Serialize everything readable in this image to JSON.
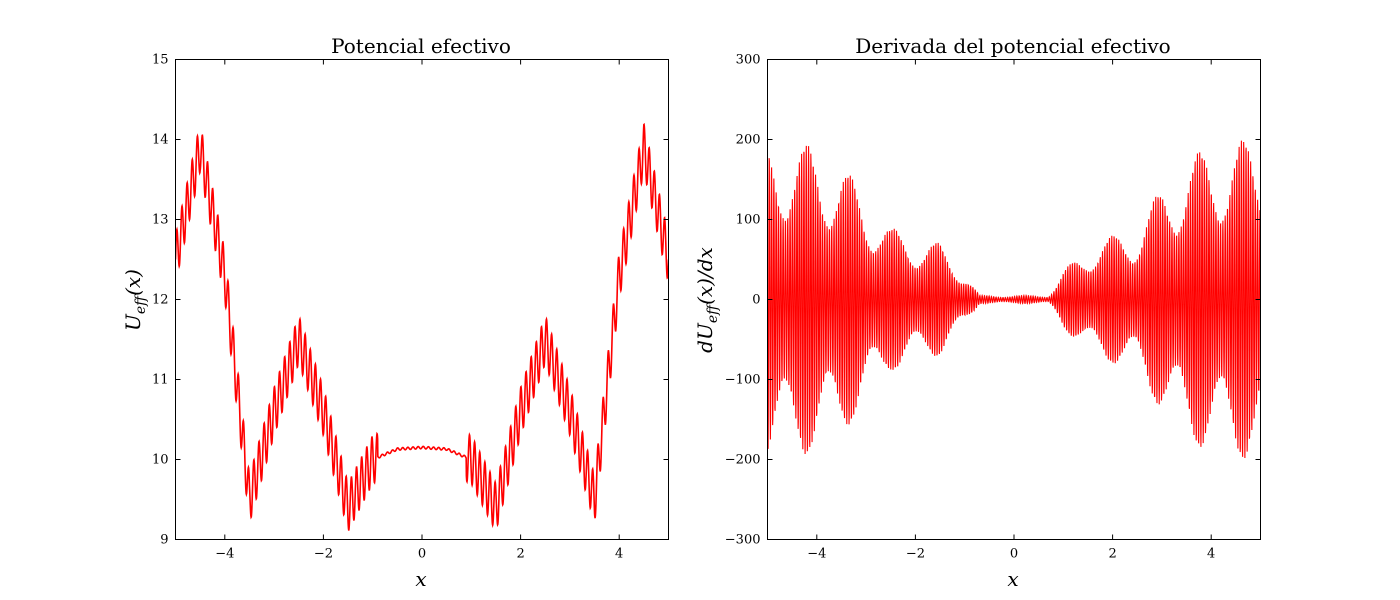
{
  "chart_data": [
    {
      "type": "line",
      "title": "Potencial efectivo",
      "xlabel": "x",
      "ylabel": "U_eff(x)",
      "xlim": [
        -5,
        5
      ],
      "ylim": [
        9,
        15
      ],
      "xticks": [
        -4,
        -2,
        0,
        2,
        4
      ],
      "xtick_labels": [
        "−4",
        "−2",
        "0",
        "2",
        "4"
      ],
      "yticks": [
        9,
        10,
        11,
        12,
        13,
        14,
        15
      ],
      "ytick_labels": [
        "9",
        "10",
        "11",
        "12",
        "13",
        "14",
        "15"
      ],
      "grid": false,
      "series": [
        {
          "color": "#ff0000",
          "x": [
            -5,
            -4.5,
            -4.0,
            -3.5,
            -3.0,
            -2.5,
            -2.0,
            -1.5,
            -1.0,
            -0.5,
            0,
            0.5,
            1.0,
            1.5,
            2.0,
            2.5,
            3.0,
            3.5,
            4.0,
            4.5,
            5
          ],
          "values": [
            12.5,
            13.9,
            12.3,
            9.5,
            10.6,
            11.5,
            10.6,
            9.4,
            10.0,
            10.13,
            10.15,
            10.13,
            10.0,
            9.4,
            10.6,
            11.5,
            10.6,
            9.5,
            12.3,
            13.9,
            12.5
          ],
          "oscillation_amplitude": 0.3
        }
      ]
    },
    {
      "type": "line",
      "title": "Derivada del potencial efectivo",
      "xlabel": "x",
      "ylabel": "dU_eff(x)/dx",
      "xlim": [
        -5,
        5
      ],
      "ylim": [
        -300,
        300
      ],
      "xticks": [
        -4,
        -2,
        0,
        2,
        4
      ],
      "xtick_labels": [
        "−4",
        "−2",
        "0",
        "2",
        "4"
      ],
      "yticks": [
        -300,
        -200,
        -100,
        0,
        100,
        200,
        300
      ],
      "ytick_labels": [
        "−300",
        "−200",
        "−100",
        "0",
        "100",
        "200",
        "300"
      ],
      "grid": false,
      "series": [
        {
          "color": "#ff0000",
          "x": [
            -5,
            -4.5,
            -4.0,
            -3.5,
            -3.0,
            -2.5,
            -2.0,
            -1.5,
            -1.0,
            -0.7,
            0,
            0.7,
            1.0,
            1.5,
            2.0,
            2.5,
            3.0,
            3.5,
            4.0,
            4.5,
            5
          ],
          "envelope": [
            200,
            200,
            190,
            170,
            130,
            90,
            80,
            70,
            35,
            5,
            5,
            5,
            35,
            70,
            80,
            95,
            140,
            180,
            190,
            200,
            200
          ]
        }
      ]
    }
  ]
}
